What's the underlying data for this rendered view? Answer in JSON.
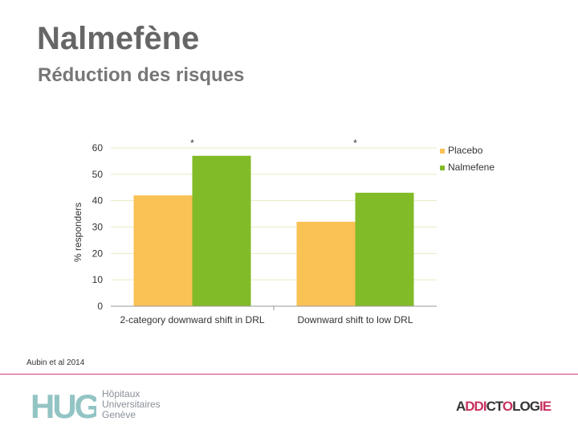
{
  "slide": {
    "title": "Nalmefène",
    "subtitle": "Réduction des risques",
    "citation": "Aubin et al 2014"
  },
  "chart_data": {
    "type": "bar",
    "title": "",
    "xlabel": "",
    "ylabel": "% responders",
    "ylim": [
      0,
      60
    ],
    "yticks": [
      0,
      10,
      20,
      30,
      40,
      50,
      60
    ],
    "grid": true,
    "legend_position": "right",
    "categories": [
      "2-category downward shift in DRL",
      "Downward shift to low DRL"
    ],
    "series": [
      {
        "name": "Placebo",
        "color": "#fac155",
        "values": [
          42,
          32
        ]
      },
      {
        "name": "Nalmefene",
        "color": "#82bb28",
        "values": [
          57,
          43
        ]
      }
    ],
    "annotations": [
      "*",
      "*"
    ]
  },
  "logos": {
    "hug_mark": "HUG",
    "hug_lines": [
      "Hôpitaux",
      "Universitaires",
      "Genève"
    ],
    "hug_color": "#93c4c4",
    "addicto_parts": [
      {
        "text": "A",
        "accent": false
      },
      {
        "text": "DDI",
        "accent": true
      },
      {
        "text": "CT",
        "accent": false
      },
      {
        "text": "O",
        "accent": true
      },
      {
        "text": "L",
        "accent": false
      },
      {
        "text": "O",
        "accent": false
      },
      {
        "text": "G",
        "accent": false
      },
      {
        "text": "IE",
        "accent": true
      }
    ]
  }
}
